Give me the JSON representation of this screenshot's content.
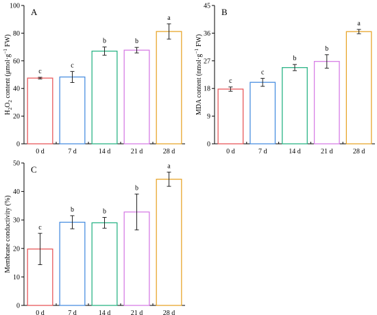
{
  "chart_data": [
    {
      "type": "bar",
      "panel_label": "A",
      "categories": [
        "0 d",
        "7 d",
        "14 d",
        "21 d",
        "28 d"
      ],
      "values": [
        47.5,
        48.3,
        67.0,
        67.7,
        81.2
      ],
      "errors": [
        0.6,
        4.0,
        3.0,
        2.0,
        5.5
      ],
      "significance": [
        "c",
        "c",
        "b",
        "b",
        "a"
      ],
      "colors": [
        "#e8585a",
        "#4a8fe0",
        "#2bb486",
        "#d77ee6",
        "#e8a62c"
      ],
      "ylabel": {
        "pre": "H",
        "sub1": "2",
        "mid": "O",
        "sub2": "2",
        "rest": " content (μmol·g",
        "sup": "−1",
        "post": " FW)"
      },
      "ylim": [
        0,
        100
      ],
      "yticks": [
        0,
        20,
        40,
        60,
        80,
        100
      ],
      "grid": false
    },
    {
      "type": "bar",
      "panel_label": "B",
      "categories": [
        "0 d",
        "7 d",
        "14 d",
        "21 d",
        "28 d"
      ],
      "values": [
        17.8,
        20.0,
        24.8,
        26.8,
        36.5
      ],
      "errors": [
        0.7,
        1.3,
        1.0,
        2.2,
        0.7
      ],
      "significance": [
        "c",
        "c",
        "b",
        "b",
        "a"
      ],
      "colors": [
        "#e8585a",
        "#4a8fe0",
        "#2bb486",
        "#d77ee6",
        "#e8a62c"
      ],
      "ylabel": {
        "pre": "MDA content (nmol·g",
        "sup": "−1",
        "post": " FW)"
      },
      "ylim": [
        0,
        45
      ],
      "yticks": [
        0,
        9,
        18,
        27,
        36,
        45
      ],
      "grid": false
    },
    {
      "type": "bar",
      "panel_label": "C",
      "categories": [
        "0 d",
        "7 d",
        "14 d",
        "21 d",
        "28 d"
      ],
      "values": [
        19.8,
        29.2,
        29.0,
        32.8,
        44.3
      ],
      "errors": [
        5.5,
        2.3,
        1.9,
        6.3,
        2.5
      ],
      "significance": [
        "c",
        "b",
        "b",
        "b",
        "a"
      ],
      "colors": [
        "#e8585a",
        "#4a8fe0",
        "#2bb486",
        "#d77ee6",
        "#e8a62c"
      ],
      "ylabel": {
        "pre": "Membrane conductivity (%)"
      },
      "ylim": [
        0,
        50
      ],
      "yticks": [
        0,
        10,
        20,
        30,
        40,
        50
      ],
      "grid": false
    }
  ]
}
